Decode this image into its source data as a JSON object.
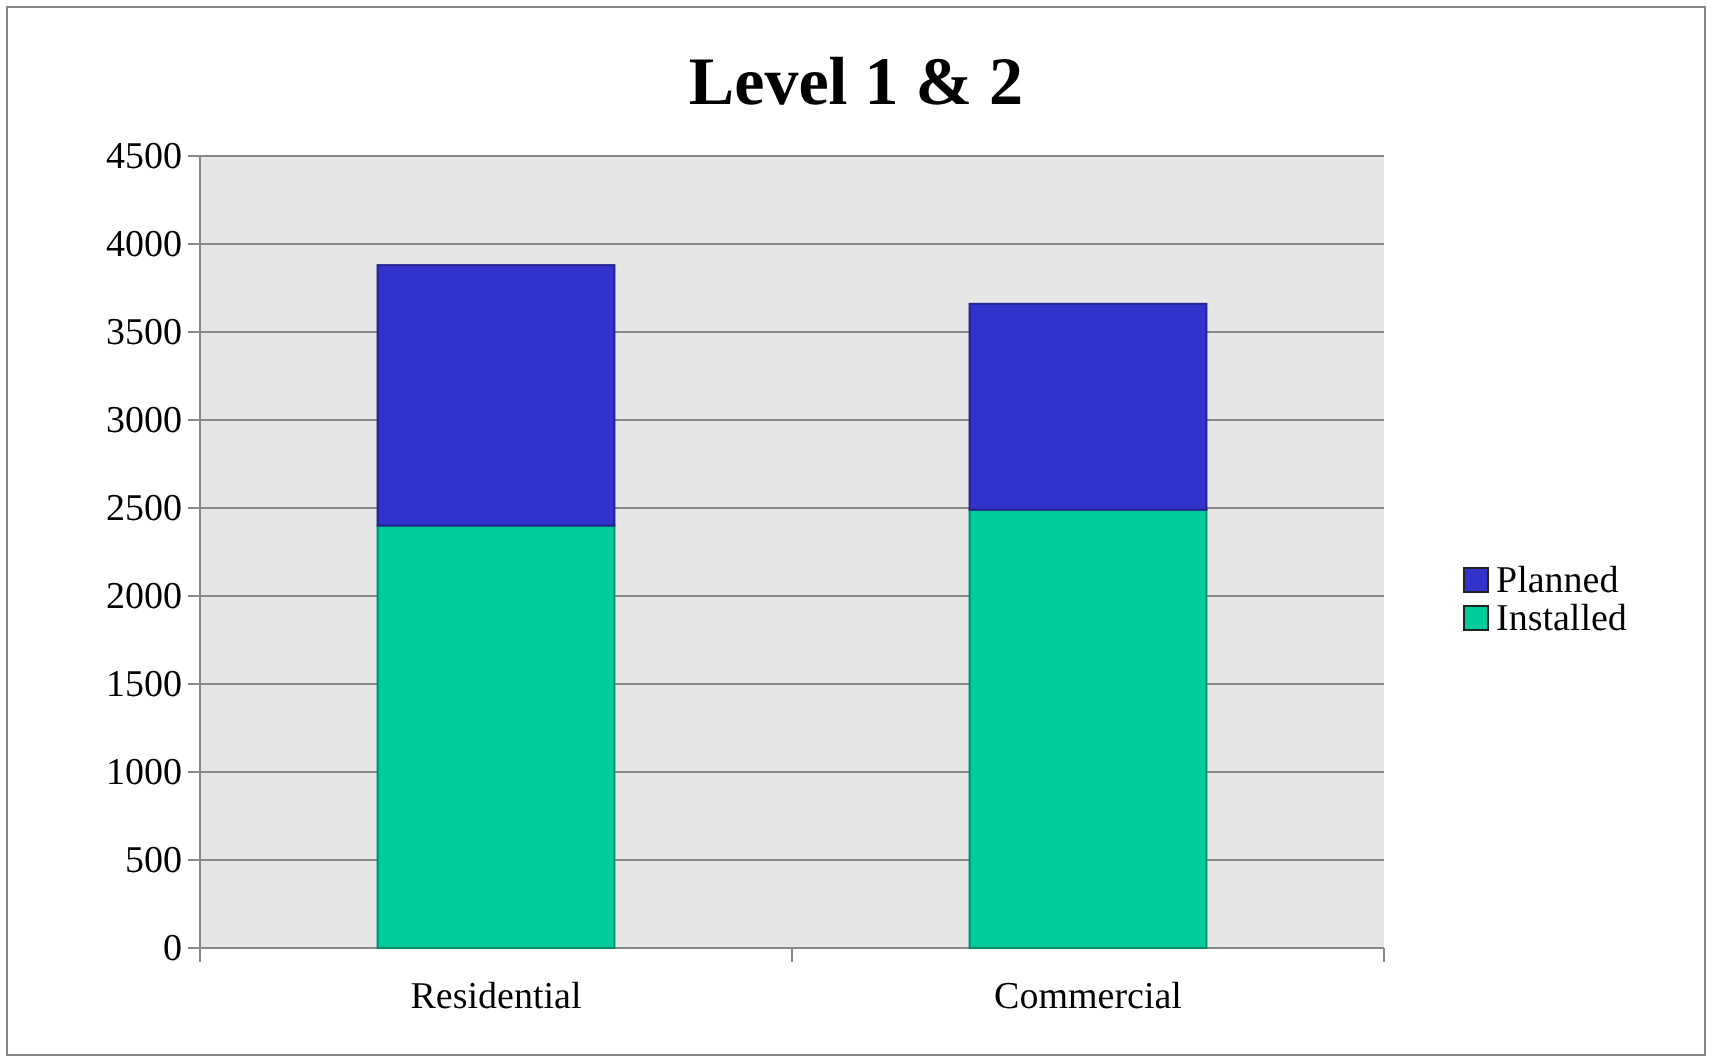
{
  "chart_data": {
    "type": "bar",
    "title": "Level 1 & 2",
    "categories": [
      "Residential",
      "Commercial"
    ],
    "stacked": true,
    "series": [
      {
        "name": "Installed",
        "color": "#00cc99",
        "values": [
          2400,
          2490
        ]
      },
      {
        "name": "Planned",
        "color": "#3333cc",
        "values": [
          1480,
          1170
        ]
      }
    ],
    "ylim": [
      0,
      4500
    ],
    "yticks": [
      0,
      500,
      1000,
      1500,
      2000,
      2500,
      3000,
      3500,
      4000,
      4500
    ],
    "grid": "y",
    "legend": "right"
  }
}
